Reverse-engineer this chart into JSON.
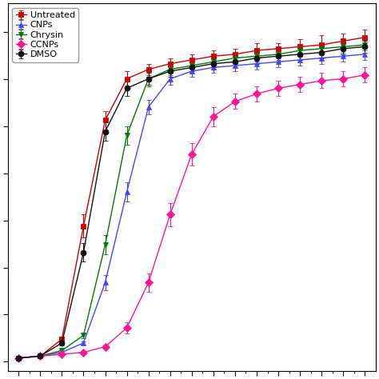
{
  "series": {
    "Untreated": {
      "color": "#cc0000",
      "marker": "s",
      "x": [
        0,
        1,
        2,
        3,
        4,
        5,
        6,
        7,
        8,
        9,
        10,
        11,
        12,
        13,
        14,
        15,
        16
      ],
      "y": [
        0.02,
        0.03,
        0.12,
        0.72,
        1.28,
        1.5,
        1.55,
        1.58,
        1.6,
        1.62,
        1.63,
        1.65,
        1.66,
        1.67,
        1.68,
        1.7,
        1.72
      ],
      "yerr": [
        0.003,
        0.003,
        0.015,
        0.06,
        0.05,
        0.04,
        0.03,
        0.03,
        0.03,
        0.03,
        0.03,
        0.04,
        0.03,
        0.04,
        0.05,
        0.04,
        0.04
      ]
    },
    "CNPs": {
      "color": "#4444ff",
      "marker": "^",
      "x": [
        0,
        1,
        2,
        3,
        4,
        5,
        6,
        7,
        8,
        9,
        10,
        11,
        12,
        13,
        14,
        15,
        16
      ],
      "y": [
        0.02,
        0.03,
        0.05,
        0.1,
        0.42,
        0.9,
        1.35,
        1.5,
        1.54,
        1.56,
        1.57,
        1.58,
        1.59,
        1.6,
        1.61,
        1.62,
        1.63
      ],
      "yerr": [
        0.003,
        0.003,
        0.005,
        0.01,
        0.04,
        0.05,
        0.04,
        0.03,
        0.03,
        0.03,
        0.03,
        0.03,
        0.03,
        0.03,
        0.03,
        0.03,
        0.03
      ]
    },
    "Chrysin": {
      "color": "#007700",
      "marker": "v",
      "x": [
        0,
        1,
        2,
        3,
        4,
        5,
        6,
        7,
        8,
        9,
        10,
        11,
        12,
        13,
        14,
        15,
        16
      ],
      "y": [
        0.02,
        0.03,
        0.06,
        0.14,
        0.62,
        1.2,
        1.5,
        1.55,
        1.57,
        1.59,
        1.61,
        1.62,
        1.63,
        1.65,
        1.66,
        1.67,
        1.68
      ],
      "yerr": [
        0.003,
        0.003,
        0.006,
        0.015,
        0.05,
        0.05,
        0.04,
        0.03,
        0.03,
        0.03,
        0.03,
        0.03,
        0.03,
        0.03,
        0.03,
        0.03,
        0.03
      ]
    },
    "CCNPs": {
      "color": "#ff1493",
      "marker": "D",
      "x": [
        0,
        1,
        2,
        3,
        4,
        5,
        6,
        7,
        8,
        9,
        10,
        11,
        12,
        13,
        14,
        15,
        16
      ],
      "y": [
        0.02,
        0.03,
        0.04,
        0.05,
        0.08,
        0.18,
        0.42,
        0.78,
        1.1,
        1.3,
        1.38,
        1.42,
        1.45,
        1.47,
        1.49,
        1.5,
        1.52
      ],
      "yerr": [
        0.003,
        0.003,
        0.004,
        0.005,
        0.01,
        0.03,
        0.05,
        0.06,
        0.06,
        0.05,
        0.04,
        0.04,
        0.04,
        0.04,
        0.04,
        0.04,
        0.04
      ]
    },
    "DMSO": {
      "color": "#111111",
      "marker": "o",
      "x": [
        0,
        1,
        2,
        3,
        4,
        5,
        6,
        7,
        8,
        9,
        10,
        11,
        12,
        13,
        14,
        15,
        16
      ],
      "y": [
        0.02,
        0.03,
        0.1,
        0.58,
        1.22,
        1.45,
        1.5,
        1.54,
        1.56,
        1.58,
        1.59,
        1.61,
        1.62,
        1.63,
        1.64,
        1.66,
        1.67
      ],
      "yerr": [
        0.003,
        0.003,
        0.012,
        0.05,
        0.05,
        0.04,
        0.03,
        0.03,
        0.03,
        0.03,
        0.03,
        0.03,
        0.03,
        0.03,
        0.03,
        0.03,
        0.03
      ]
    }
  },
  "xlim": [
    -0.5,
    16.5
  ],
  "ylim": [
    -0.05,
    1.9
  ],
  "legend_loc": "upper left",
  "figsize": [
    4.74,
    4.74
  ],
  "dpi": 100
}
